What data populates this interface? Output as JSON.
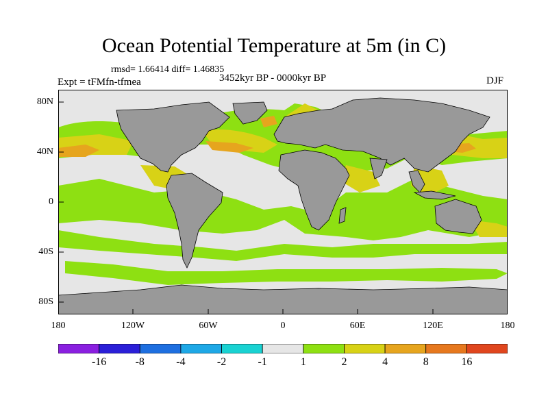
{
  "title": "Ocean Potential Temperature at 5m (in C)",
  "stats": "rmsd= 1.66414 diff= 1.46835",
  "experiment": "Expt = tFMfn-tfmea",
  "period": "3452kyr BP - 0000kyr BP",
  "season": "DJF",
  "map": {
    "lat_labels": [
      "80N",
      "40N",
      "0",
      "40S",
      "80S"
    ],
    "lat_values": [
      80,
      40,
      0,
      -40,
      -80
    ],
    "lon_labels": [
      "180",
      "120W",
      "60W",
      "0",
      "60E",
      "120E",
      "180"
    ],
    "lon_values": [
      -180,
      -120,
      -60,
      0,
      60,
      120,
      180
    ]
  },
  "legend": {
    "labels": [
      "-16",
      "-8",
      "-4",
      "-2",
      "-1",
      "1",
      "2",
      "4",
      "8",
      "16"
    ],
    "colors": [
      "#8a1fe0",
      "#2b1fd8",
      "#1e6fe0",
      "#1ea8e6",
      "#19d2d2",
      "#e6e6e6",
      "#8ee012",
      "#d8d216",
      "#e6a51e",
      "#e6781e",
      "#e0461e"
    ]
  },
  "colors": {
    "land": "#999999",
    "ocean_neutral": "#e6e6e6",
    "warm_1_2": "#8ee012",
    "warm_2_4": "#d8d216",
    "warm_4_8": "#e6a51e",
    "warm_8_16": "#e6781e"
  }
}
